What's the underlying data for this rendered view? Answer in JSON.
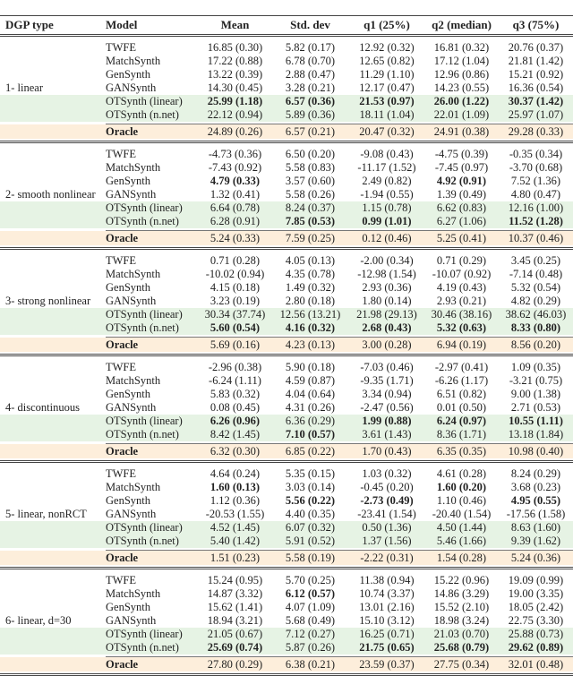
{
  "header": [
    "DGP type",
    "Model",
    "Mean",
    "Std. dev",
    "q1 (25%)",
    "q2 (median)",
    "q3 (75%)"
  ],
  "colors": {
    "highlight_green": "#e6f3e4",
    "oracle_bg": "#fdeedb"
  },
  "groups": [
    {
      "dgp": "1- linear",
      "rows": [
        {
          "model": "TWFE",
          "cells": [
            "16.85 (0.30)",
            "5.82 (0.17)",
            "12.92 (0.32)",
            "16.81 (0.32)",
            "20.76 (0.37)"
          ],
          "bold": []
        },
        {
          "model": "MatchSynth",
          "cells": [
            "17.22 (0.88)",
            "6.78 (0.70)",
            "12.65 (0.82)",
            "17.12 (1.04)",
            "21.81 (1.42)"
          ],
          "bold": []
        },
        {
          "model": "GenSynth",
          "cells": [
            "13.22 (0.39)",
            "2.88 (0.47)",
            "11.29 (1.10)",
            "12.96 (0.86)",
            "15.21 (0.92)"
          ],
          "bold": []
        },
        {
          "model": "GANSynth",
          "cells": [
            "14.30 (0.45)",
            "3.28 (0.21)",
            "12.17 (0.47)",
            "14.23 (0.55)",
            "16.36 (0.54)"
          ],
          "bold": []
        },
        {
          "model": "OTSynth (linear)",
          "cells": [
            "25.99 (1.18)",
            "6.57 (0.36)",
            "21.53 (0.97)",
            "26.00 (1.22)",
            "30.37 (1.42)"
          ],
          "bold": [
            0,
            1,
            2,
            3,
            4
          ]
        },
        {
          "model": "OTSynth (n.net)",
          "cells": [
            "22.12 (0.94)",
            "5.89 (0.36)",
            "18.11 (1.04)",
            "22.01 (1.09)",
            "25.97 (1.07)"
          ],
          "bold": []
        }
      ],
      "oracle": {
        "model": "Oracle",
        "cells": [
          "24.89 (0.26)",
          "6.57 (0.21)",
          "20.47 (0.32)",
          "24.91 (0.38)",
          "29.28 (0.33)"
        ]
      }
    },
    {
      "dgp": "2- smooth nonlinear",
      "rows": [
        {
          "model": "TWFE",
          "cells": [
            "-4.73 (0.36)",
            "6.50 (0.20)",
            "-9.08 (0.43)",
            "-4.75 (0.39)",
            "-0.35 (0.34)"
          ],
          "bold": []
        },
        {
          "model": "MatchSynth",
          "cells": [
            "-7.43 (0.92)",
            "5.58 (0.83)",
            "-11.17 (1.52)",
            "-7.45 (0.97)",
            "-3.70 (0.68)"
          ],
          "bold": []
        },
        {
          "model": "GenSynth",
          "cells": [
            "4.79 (0.33)",
            "3.57 (0.60)",
            "2.49 (0.82)",
            "4.92 (0.91)",
            "7.52 (1.36)"
          ],
          "bold": [
            0,
            3
          ]
        },
        {
          "model": "GANSynth",
          "cells": [
            "1.32 (0.41)",
            "5.58 (0.26)",
            "-1.94 (0.55)",
            "1.39 (0.49)",
            "4.80 (0.47)"
          ],
          "bold": []
        },
        {
          "model": "OTSynth (linear)",
          "cells": [
            "6.64 (0.78)",
            "8.24 (0.37)",
            "1.15 (0.78)",
            "6.62 (0.83)",
            "12.16 (1.00)"
          ],
          "bold": []
        },
        {
          "model": "OTSynth (n.net)",
          "cells": [
            "6.28 (0.91)",
            "7.85 (0.53)",
            "0.99 (1.01)",
            "6.27 (1.06)",
            "11.52 (1.28)"
          ],
          "bold": [
            1,
            2,
            4
          ]
        }
      ],
      "oracle": {
        "model": "Oracle",
        "cells": [
          "5.24 (0.33)",
          "7.59 (0.25)",
          "0.12 (0.46)",
          "5.25 (0.41)",
          "10.37 (0.46)"
        ]
      }
    },
    {
      "dgp": "3- strong nonlinear",
      "rows": [
        {
          "model": "TWFE",
          "cells": [
            "0.71 (0.28)",
            "4.05 (0.13)",
            "-2.00 (0.34)",
            "0.71 (0.29)",
            "3.45 (0.25)"
          ],
          "bold": []
        },
        {
          "model": "MatchSynth",
          "cells": [
            "-10.02 (0.94)",
            "4.35 (0.78)",
            "-12.98 (1.54)",
            "-10.07 (0.92)",
            "-7.14 (0.48)"
          ],
          "bold": []
        },
        {
          "model": "GenSynth",
          "cells": [
            "4.15 (0.18)",
            "1.49 (0.32)",
            "2.93 (0.36)",
            "4.19 (0.43)",
            "5.32 (0.54)"
          ],
          "bold": []
        },
        {
          "model": "GANSynth",
          "cells": [
            "3.23 (0.19)",
            "2.80 (0.18)",
            "1.80 (0.14)",
            "2.93 (0.21)",
            "4.82 (0.29)"
          ],
          "bold": []
        },
        {
          "model": "OTSynth (linear)",
          "cells": [
            "30.34 (37.74)",
            "12.56 (13.21)",
            "21.98 (29.13)",
            "30.46 (38.16)",
            "38.62 (46.03)"
          ],
          "bold": []
        },
        {
          "model": "OTSynth (n.net)",
          "cells": [
            "5.60 (0.54)",
            "4.16 (0.32)",
            "2.68 (0.43)",
            "5.32 (0.63)",
            "8.33 (0.80)"
          ],
          "bold": [
            0,
            1,
            2,
            3,
            4
          ]
        }
      ],
      "oracle": {
        "model": "Oracle",
        "cells": [
          "5.69 (0.16)",
          "4.23 (0.13)",
          "3.00 (0.28)",
          "6.94 (0.19)",
          "8.56 (0.20)"
        ]
      }
    },
    {
      "dgp": "4- discontinuous",
      "rows": [
        {
          "model": "TWFE",
          "cells": [
            "-2.96 (0.38)",
            "5.90 (0.18)",
            "-7.03 (0.46)",
            "-2.97 (0.41)",
            "1.09 (0.35)"
          ],
          "bold": []
        },
        {
          "model": "MatchSynth",
          "cells": [
            "-6.24 (1.11)",
            "4.59 (0.87)",
            "-9.35 (1.71)",
            "-6.26 (1.17)",
            "-3.21 (0.75)"
          ],
          "bold": []
        },
        {
          "model": "GenSynth",
          "cells": [
            "5.83 (0.32)",
            "4.04 (0.64)",
            "3.34 (0.94)",
            "6.51 (0.82)",
            "9.00 (1.38)"
          ],
          "bold": []
        },
        {
          "model": "GANSynth",
          "cells": [
            "0.08 (0.45)",
            "4.31 (0.26)",
            "-2.47 (0.56)",
            "0.01 (0.50)",
            "2.71 (0.53)"
          ],
          "bold": []
        },
        {
          "model": "OTSynth (linear)",
          "cells": [
            "6.26 (0.96)",
            "6.36 (0.29)",
            "1.99 (0.88)",
            "6.24 (0.97)",
            "10.55 (1.11)"
          ],
          "bold": [
            0,
            2,
            3,
            4
          ]
        },
        {
          "model": "OTSynth (n.net)",
          "cells": [
            "8.42 (1.45)",
            "7.10 (0.57)",
            "3.61 (1.43)",
            "8.36 (1.71)",
            "13.18 (1.84)"
          ],
          "bold": [
            1
          ]
        }
      ],
      "oracle": {
        "model": "Oracle",
        "cells": [
          "6.32 (0.30)",
          "6.85 (0.22)",
          "1.70 (0.43)",
          "6.35 (0.35)",
          "10.98 (0.40)"
        ]
      }
    },
    {
      "dgp": "5- linear, nonRCT",
      "rows": [
        {
          "model": "TWFE",
          "cells": [
            "4.64 (0.24)",
            "5.35 (0.15)",
            "1.03 (0.32)",
            "4.61 (0.28)",
            "8.24 (0.29)"
          ],
          "bold": []
        },
        {
          "model": "MatchSynth",
          "cells": [
            "1.60 (0.13)",
            "3.03 (0.14)",
            "-0.45 (0.20)",
            "1.60 (0.20)",
            "3.68 (0.23)"
          ],
          "bold": [
            0,
            3
          ]
        },
        {
          "model": "GenSynth",
          "cells": [
            "1.12 (0.36)",
            "5.56 (0.22)",
            "-2.73 (0.49)",
            "1.10 (0.46)",
            "4.95 (0.55)"
          ],
          "bold": [
            1,
            2,
            4
          ]
        },
        {
          "model": "GANSynth",
          "cells": [
            "-20.53 (1.55)",
            "4.40 (0.35)",
            "-23.41 (1.54)",
            "-20.40 (1.54)",
            "-17.56 (1.58)"
          ],
          "bold": []
        },
        {
          "model": "OTSynth (linear)",
          "cells": [
            "4.52 (1.45)",
            "6.07 (0.32)",
            "0.50 (1.36)",
            "4.50 (1.44)",
            "8.63 (1.60)"
          ],
          "bold": []
        },
        {
          "model": "OTSynth (n.net)",
          "cells": [
            "5.40 (1.42)",
            "5.91 (0.52)",
            "1.37 (1.56)",
            "5.46 (1.66)",
            "9.39 (1.62)"
          ],
          "bold": []
        }
      ],
      "oracle": {
        "model": "Oracle",
        "cells": [
          "1.51 (0.23)",
          "5.58 (0.19)",
          "-2.22 (0.31)",
          "1.54 (0.28)",
          "5.24 (0.36)"
        ]
      }
    },
    {
      "dgp": "6- linear, d=30",
      "rows": [
        {
          "model": "TWFE",
          "cells": [
            "15.24 (0.95)",
            "5.70 (0.25)",
            "11.38 (0.94)",
            "15.22 (0.96)",
            "19.09 (0.99)"
          ],
          "bold": []
        },
        {
          "model": "MatchSynth",
          "cells": [
            "14.87 (3.32)",
            "6.12 (0.57)",
            "10.74 (3.37)",
            "14.86 (3.29)",
            "19.00 (3.35)"
          ],
          "bold": [
            1
          ]
        },
        {
          "model": "GenSynth",
          "cells": [
            "15.62 (1.41)",
            "4.07 (1.09)",
            "13.01 (2.16)",
            "15.52 (2.10)",
            "18.05 (2.42)"
          ],
          "bold": []
        },
        {
          "model": "GANSynth",
          "cells": [
            "18.94 (3.21)",
            "5.68 (0.49)",
            "15.10 (3.12)",
            "18.98 (3.24)",
            "22.75 (3.30)"
          ],
          "bold": []
        },
        {
          "model": "OTSynth (linear)",
          "cells": [
            "21.05 (0.67)",
            "7.12 (0.27)",
            "16.25 (0.71)",
            "21.03 (0.70)",
            "25.88 (0.73)"
          ],
          "bold": []
        },
        {
          "model": "OTSynth (n.net)",
          "cells": [
            "25.69 (0.74)",
            "5.87 (0.26)",
            "21.75 (0.65)",
            "25.68 (0.79)",
            "29.62 (0.89)"
          ],
          "bold": [
            0,
            2,
            3,
            4
          ]
        }
      ],
      "oracle": {
        "model": "Oracle",
        "cells": [
          "27.80 (0.29)",
          "6.38 (0.21)",
          "23.59 (0.37)",
          "27.75 (0.34)",
          "32.01 (0.48)"
        ]
      }
    }
  ]
}
